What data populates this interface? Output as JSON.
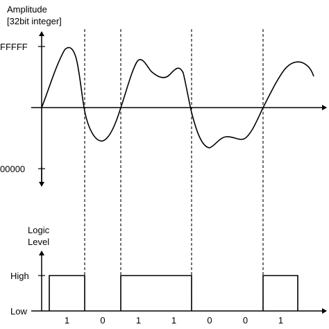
{
  "amplitude_axis": {
    "label_line1": "Amplitude",
    "label_line2": "[32bit integer]",
    "max_tick": "FFFFF",
    "min_tick": "00000"
  },
  "logic_axis": {
    "label_line1": "Logic",
    "label_line2": "Level",
    "high_tick": "High",
    "low_tick": "Low"
  },
  "bits": [
    "1",
    "0",
    "1",
    "1",
    "0",
    "0",
    "1"
  ],
  "logic_levels": [
    "High",
    "Low",
    "High",
    "High",
    "Low",
    "Low",
    "High"
  ],
  "colors": {
    "line": "#000000",
    "background": "#ffffff"
  }
}
